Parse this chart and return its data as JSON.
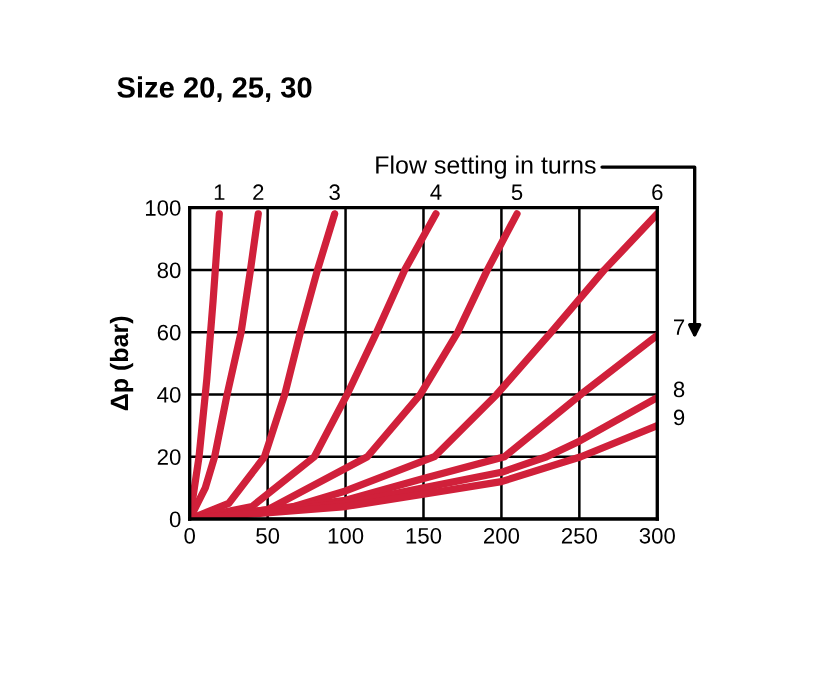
{
  "chart_data": {
    "type": "line",
    "title": "Size 20, 25, 30",
    "ylabel": "Δp (bar)",
    "annotations": [
      "Flow setting in turns"
    ],
    "xlim": [
      0,
      300
    ],
    "ylim": [
      0,
      100
    ],
    "xticks": [
      0,
      50,
      100,
      150,
      200,
      250,
      300
    ],
    "yticks": [
      0,
      20,
      40,
      60,
      80,
      100
    ],
    "grid": true,
    "legend": false,
    "line_style": "solid",
    "marker": "none",
    "series": [
      {
        "name": "1",
        "color": "#d0203a",
        "x": [
          0,
          6,
          11,
          15,
          19
        ],
        "values": [
          0,
          20,
          45,
          70,
          98
        ]
      },
      {
        "name": "2",
        "color": "#d0203a",
        "x": [
          0,
          10,
          16,
          24,
          33,
          39,
          44
        ],
        "values": [
          0,
          10,
          20,
          40,
          60,
          80,
          98
        ]
      },
      {
        "name": "3",
        "color": "#d0203a",
        "x": [
          0,
          25,
          48,
          61,
          71,
          82,
          93
        ],
        "values": [
          0,
          5,
          20,
          40,
          60,
          80,
          98
        ]
      },
      {
        "name": "4",
        "color": "#d0203a",
        "x": [
          0,
          40,
          80,
          101,
          120,
          138,
          158
        ],
        "values": [
          0,
          4,
          20,
          40,
          60,
          80,
          98
        ]
      },
      {
        "name": "5",
        "color": "#d0203a",
        "x": [
          0,
          50,
          114,
          148,
          172,
          191,
          210
        ],
        "values": [
          0,
          3,
          20,
          40,
          60,
          80,
          98
        ]
      },
      {
        "name": "6",
        "color": "#d0203a",
        "x": [
          0,
          60,
          100,
          157,
          197,
          232,
          266,
          300
        ],
        "values": [
          0,
          3,
          9,
          20,
          40,
          60,
          80,
          98
        ]
      },
      {
        "name": "7",
        "color": "#d0203a",
        "x": [
          0,
          100,
          150,
          202,
          251,
          300
        ],
        "values": [
          0,
          6,
          13,
          20,
          40,
          59
        ]
      },
      {
        "name": "8",
        "color": "#d0203a",
        "x": [
          0,
          100,
          150,
          200,
          229,
          250,
          300
        ],
        "values": [
          0,
          5,
          10,
          15,
          20,
          25,
          39
        ]
      },
      {
        "name": "9",
        "color": "#d0203a",
        "x": [
          0,
          100,
          150,
          200,
          251,
          300
        ],
        "values": [
          0,
          4,
          8,
          12,
          20,
          30
        ]
      }
    ]
  }
}
